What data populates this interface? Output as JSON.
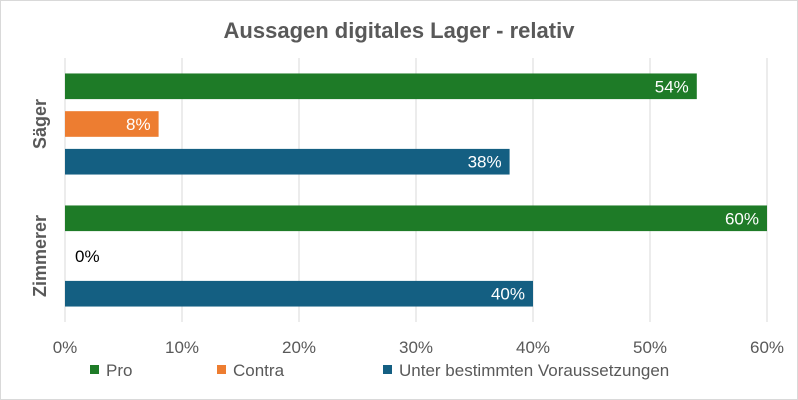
{
  "chart_data": {
    "type": "bar",
    "orientation": "horizontal",
    "title": "Aussagen digitales Lager - relativ",
    "categories": [
      "Säger",
      "Zimmerer"
    ],
    "series": [
      {
        "name": "Pro",
        "color": "#1e7b27",
        "values": [
          54,
          60
        ],
        "labels": [
          "54%",
          "60%"
        ]
      },
      {
        "name": "Contra",
        "color": "#ed7d31",
        "values": [
          8,
          0
        ],
        "labels": [
          "8%",
          "0%"
        ]
      },
      {
        "name": "Unter bestimmten Voraussetzungen",
        "color": "#145f82",
        "values": [
          38,
          40
        ],
        "labels": [
          "38%",
          "40%"
        ]
      }
    ],
    "xlim": [
      0,
      60
    ],
    "xticks": [
      0,
      10,
      20,
      30,
      40,
      50,
      60
    ],
    "xtick_labels": [
      "0%",
      "10%",
      "20%",
      "30%",
      "40%",
      "50%",
      "60%"
    ],
    "grid": "vertical",
    "legend_position": "bottom"
  }
}
